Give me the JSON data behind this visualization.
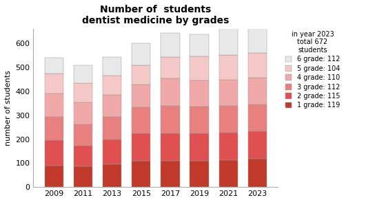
{
  "title": "Number of  students\ndentist medicine by grades",
  "ylabel": "number of students",
  "years": [
    2009,
    2011,
    2013,
    2015,
    2017,
    2019,
    2021,
    2023
  ],
  "grades": {
    "1 grade": [
      90,
      88,
      95,
      110,
      110,
      110,
      112,
      119
    ],
    "2 grade": [
      105,
      85,
      105,
      115,
      115,
      115,
      115,
      115
    ],
    "3 grade": [
      100,
      90,
      95,
      110,
      115,
      112,
      112,
      112
    ],
    "4 grade": [
      95,
      90,
      90,
      95,
      115,
      110,
      110,
      110
    ],
    "5 grade": [
      85,
      80,
      80,
      80,
      90,
      100,
      104,
      104
    ],
    "6 grade": [
      65,
      75,
      80,
      90,
      100,
      90,
      112,
      112
    ]
  },
  "colors": [
    "#c0392b",
    "#e05050",
    "#e88080",
    "#f0a8a8",
    "#f5c8c8",
    "#e8e8e8"
  ],
  "legend_title": "in year 2023\ntotal 672\nstudents",
  "legend_labels": [
    "6 grade: 112",
    "5 grade: 104",
    "4 grade: 110",
    "3 grade: 112",
    "2 grade: 115",
    "1 grade: 119"
  ],
  "ylim": [
    0,
    660
  ],
  "yticks": [
    0,
    100,
    200,
    300,
    400,
    500,
    600
  ],
  "background_color": "#ffffff",
  "bar_width": 0.65
}
